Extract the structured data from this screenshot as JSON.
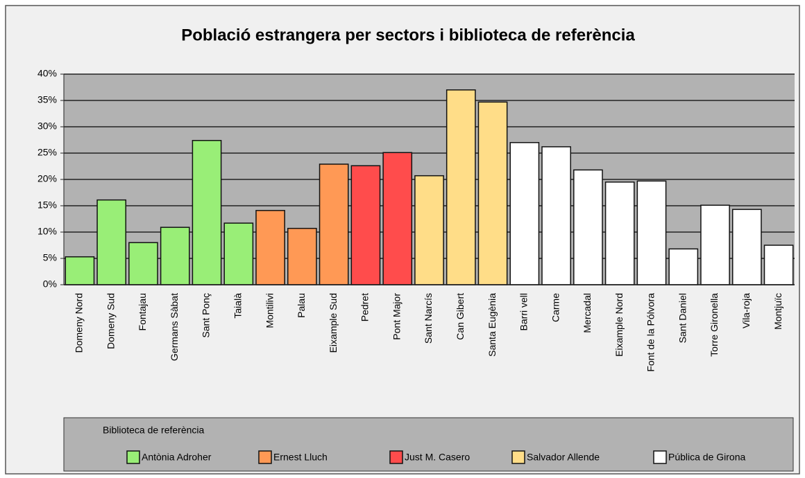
{
  "chart_data": {
    "type": "bar",
    "title": "Població estrangera per sectors i biblioteca de referència",
    "categories": [
      "Domeny Nord",
      "Domeny Sud",
      "Fontajau",
      "Germans Sàbat",
      "Sant Ponç",
      "Taialà",
      "Montilivi",
      "Palau",
      "Eixample Sud",
      "Pedret",
      "Pont Major",
      "Sant Narcís",
      "Can Gibert",
      "Santa Eugènia",
      "Barri vell",
      "Carme",
      "Mercadal",
      "Eixample Nord",
      "Font de la Pólvora",
      "Sant Daniel",
      "Torre Gironella",
      "Vila-roja",
      "Montjuïc"
    ],
    "series": [
      {
        "name": "Antònia Adroher",
        "color": "#99ee77",
        "values": [
          5.3,
          16.1,
          8.0,
          10.9,
          27.4,
          11.7,
          null,
          null,
          null,
          null,
          null,
          null,
          null,
          null,
          null,
          null,
          null,
          null,
          null,
          null,
          null,
          null,
          null
        ]
      },
      {
        "name": "Ernest Lluch",
        "color": "#ff9955",
        "values": [
          null,
          null,
          null,
          null,
          null,
          null,
          14.1,
          10.7,
          22.9,
          null,
          null,
          null,
          null,
          null,
          null,
          null,
          null,
          null,
          null,
          null,
          null,
          null,
          null
        ]
      },
      {
        "name": "Just M. Casero",
        "color": "#ff4c4c",
        "values": [
          null,
          null,
          null,
          null,
          null,
          null,
          null,
          null,
          null,
          22.6,
          25.1,
          null,
          null,
          null,
          null,
          null,
          null,
          null,
          null,
          null,
          null,
          null,
          null
        ]
      },
      {
        "name": "Salvador Allende",
        "color": "#ffdd88",
        "values": [
          null,
          null,
          null,
          null,
          null,
          null,
          null,
          null,
          null,
          null,
          null,
          20.7,
          37.0,
          34.7,
          null,
          null,
          null,
          null,
          null,
          null,
          null,
          null,
          null
        ]
      },
      {
        "name": "Pública de Girona",
        "color": "#ffffff",
        "values": [
          null,
          null,
          null,
          null,
          null,
          null,
          null,
          null,
          null,
          null,
          null,
          null,
          null,
          null,
          27.0,
          26.2,
          21.8,
          19.5,
          19.7,
          6.8,
          15.1,
          14.3,
          7.5
        ]
      }
    ],
    "ylim": [
      0,
      40
    ],
    "yticks": [
      {
        "value": 0,
        "label": "0%"
      },
      {
        "value": 5,
        "label": "5%"
      },
      {
        "value": 10,
        "label": "10%"
      },
      {
        "value": 15,
        "label": "15%"
      },
      {
        "value": 20,
        "label": "20%"
      },
      {
        "value": 25,
        "label": "25%"
      },
      {
        "value": 30,
        "label": "30%"
      },
      {
        "value": 35,
        "label": "35%"
      },
      {
        "value": 40,
        "label": "40%"
      }
    ],
    "grid": true,
    "legend_title": "Biblioteca de referència"
  }
}
